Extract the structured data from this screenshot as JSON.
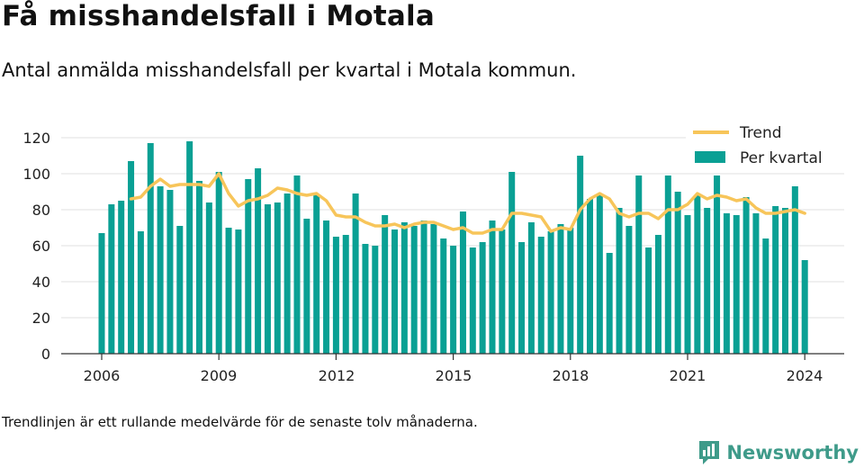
{
  "title": "Få misshandelsfall i Motala",
  "subtitle": "Antal anmälda misshandelsfall per kvartal i Motala kommun.",
  "footnote": "Trendlinjen är ett rullande medelvärde för de senaste tolv månaderna.",
  "brand": "Newsworthy",
  "colors": {
    "bar": "#0aa094",
    "trend": "#f7c55a",
    "grid": "#e6e6e6",
    "axis": "#333333",
    "brand": "#3f9b8a"
  },
  "chart_data": {
    "type": "bar",
    "title": "Få misshandelsfall i Motala",
    "ylim": [
      0,
      125
    ],
    "y_ticks": [
      0,
      20,
      40,
      60,
      80,
      100,
      120
    ],
    "x_ticks": [
      "2006",
      "2009",
      "2012",
      "2015",
      "2018",
      "2021",
      "2024"
    ],
    "x_start_year": 2006,
    "grid": true,
    "legend": {
      "position": "top-right",
      "entries": [
        "Trend",
        "Per kvartal"
      ]
    },
    "series": [
      {
        "name": "Per kvartal",
        "type": "bar",
        "values": [
          67,
          83,
          85,
          107,
          68,
          117,
          93,
          91,
          71,
          118,
          96,
          84,
          101,
          70,
          69,
          97,
          103,
          83,
          84,
          89,
          99,
          75,
          88,
          74,
          65,
          66,
          89,
          61,
          60,
          77,
          69,
          73,
          71,
          74,
          72,
          64,
          60,
          79,
          59,
          62,
          74,
          69,
          101,
          62,
          73,
          65,
          68,
          72,
          70,
          110,
          86,
          88,
          56,
          81,
          71,
          99,
          59,
          66,
          99,
          90,
          77,
          88,
          81,
          99,
          78,
          77,
          87,
          78,
          64,
          82,
          81,
          93,
          52
        ]
      },
      {
        "name": "Trend",
        "type": "line",
        "values": [
          null,
          null,
          null,
          86,
          87,
          93,
          97,
          93,
          94,
          94,
          94,
          93,
          100,
          89,
          82,
          85,
          86,
          88,
          92,
          91,
          89,
          88,
          89,
          85,
          77,
          76,
          76,
          73,
          71,
          71,
          72,
          70,
          72,
          73,
          73,
          71,
          69,
          70,
          67,
          67,
          69,
          69,
          78,
          78,
          77,
          76,
          68,
          70,
          69,
          80,
          86,
          89,
          86,
          78,
          76,
          78,
          78,
          75,
          80,
          80,
          83,
          89,
          86,
          88,
          87,
          85,
          86,
          81,
          78,
          78,
          79,
          80,
          78
        ]
      }
    ]
  }
}
